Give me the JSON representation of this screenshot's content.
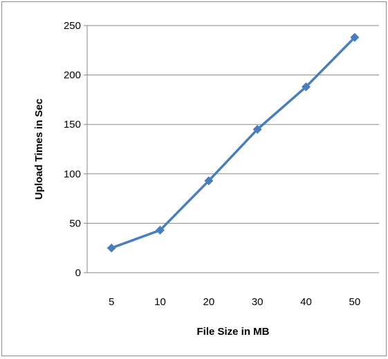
{
  "chart_data": {
    "type": "line",
    "title": "",
    "xlabel": "File Size in MB",
    "ylabel": "Upload Times in Sec",
    "categories": [
      "5",
      "10",
      "20",
      "30",
      "40",
      "50"
    ],
    "series": [
      {
        "values": [
          25,
          43,
          93,
          145,
          188,
          238
        ],
        "color": "#4a7ebb",
        "marker": "diamond"
      }
    ],
    "ylim": [
      0,
      250
    ],
    "yticks": [
      0,
      50,
      100,
      150,
      200,
      250
    ],
    "ytick_labels": [
      "0",
      "50",
      "100",
      "150",
      "200",
      "250"
    ],
    "grid": "horizontal",
    "legend": "none"
  }
}
